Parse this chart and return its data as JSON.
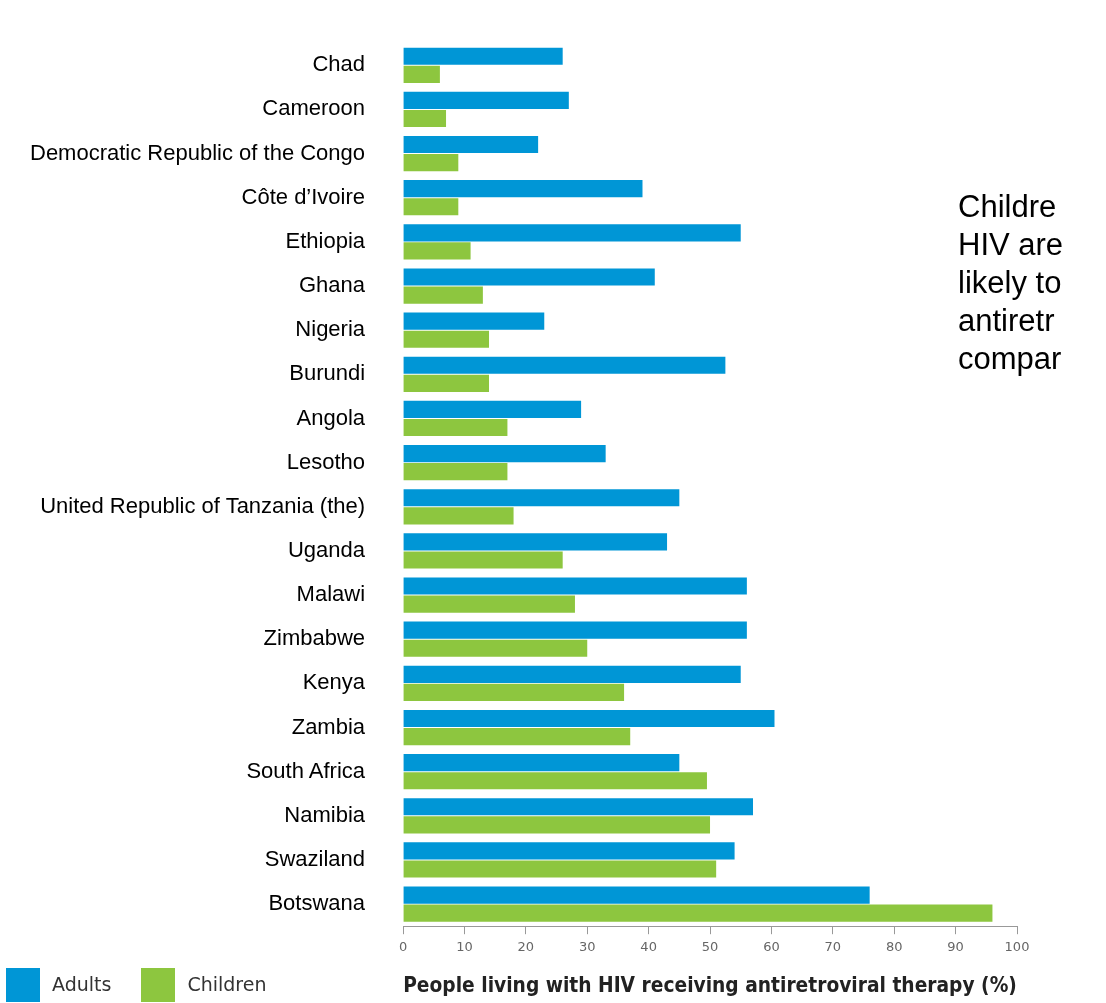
{
  "chart_data": {
    "type": "bar",
    "orientation": "horizontal",
    "xlabel": "People living with HIV receiving antiretroviral therapy (%)",
    "categories": [
      "Chad",
      "Cameroon",
      "Democratic Republic of the Congo",
      "Côte d’Ivoire",
      "Ethiopia",
      "Ghana",
      "Nigeria",
      "Burundi",
      "Angola",
      "Lesotho",
      "United Republic of Tanzania (the)",
      "Uganda",
      "Malawi",
      "Zimbabwe",
      "Kenya",
      "Zambia",
      "South Africa",
      "Namibia",
      "Swaziland",
      "Botswana"
    ],
    "series": [
      {
        "name": "Adults",
        "color": "#0096d6",
        "values": [
          26,
          27,
          22,
          39,
          55,
          41,
          23,
          52.5,
          29,
          33,
          45,
          43,
          56,
          56,
          55,
          60.5,
          45,
          57,
          54,
          76
        ]
      },
      {
        "name": "Children",
        "color": "#8dc63f",
        "values": [
          6,
          7,
          9,
          9,
          11,
          13,
          14,
          14,
          17,
          17,
          18,
          26,
          28,
          30,
          36,
          37,
          49.5,
          50,
          51,
          96
        ]
      }
    ],
    "xlim": [
      0,
      100
    ],
    "xticks": [
      0,
      10,
      20,
      30,
      40,
      50,
      60,
      70,
      80,
      90,
      100
    ],
    "legend": "bottom left",
    "grid": false,
    "annotations": [
      "Childre",
      "HIV are",
      "likely to",
      "antiretr",
      "compar"
    ]
  }
}
